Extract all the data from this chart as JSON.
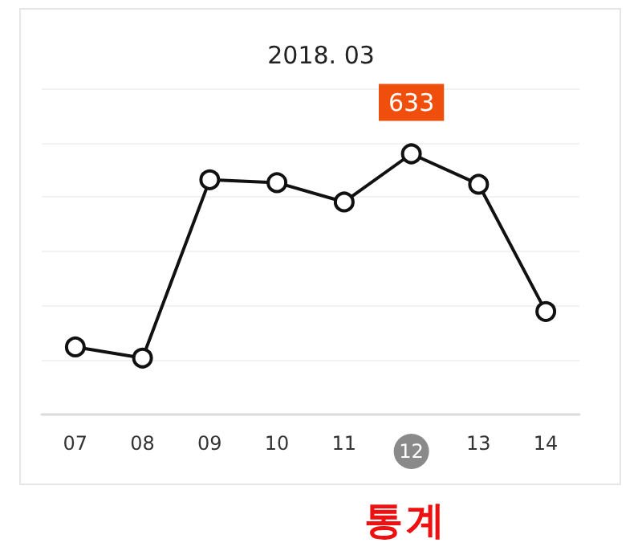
{
  "chart_data": {
    "type": "line",
    "title": "2018. 03",
    "categories": [
      "07",
      "08",
      "09",
      "10",
      "11",
      "12",
      "13",
      "14"
    ],
    "series": [
      {
        "color": "#111111",
        "values": [
          164,
          137,
          570,
          563,
          516,
          633,
          559,
          250
        ],
        "value_labels": [
          null,
          null,
          null,
          null,
          null,
          "633",
          null,
          null
        ]
      }
    ],
    "ylim": [
      0,
      792
    ],
    "yticks": [
      {
        "value": 0,
        "label": null
      },
      {
        "value": 132,
        "label": null
      },
      {
        "value": 264,
        "label": null
      },
      {
        "value": 396,
        "label": null
      },
      {
        "value": 528,
        "label": null
      },
      {
        "value": 660,
        "label": null
      },
      {
        "value": 792,
        "label": null
      }
    ],
    "tick_labels": "x",
    "marker": "circle",
    "grid": "y",
    "annotations": [
      "통계"
    ]
  }
}
